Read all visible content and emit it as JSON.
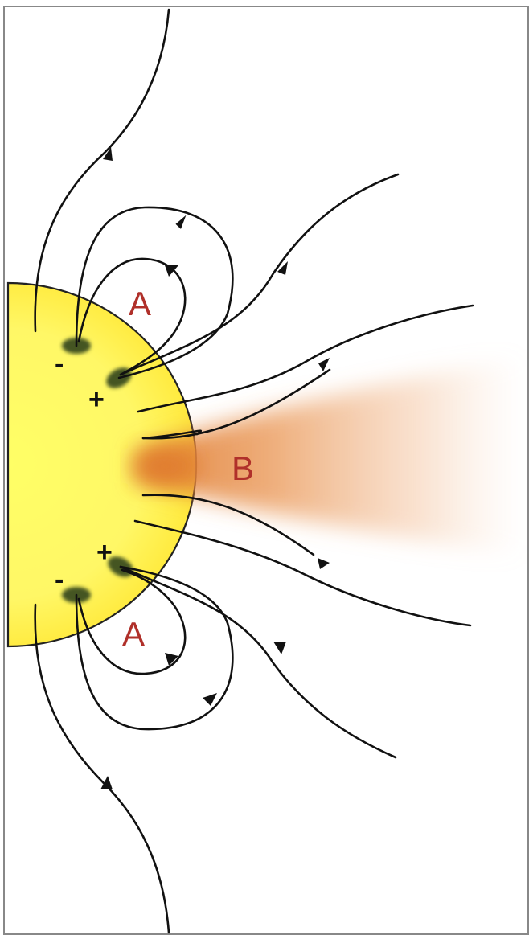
{
  "labels": {
    "region_a_upper": "A",
    "region_a_lower": "A",
    "region_b": "B",
    "pole_upper_negative": "-",
    "pole_upper_positive": "+",
    "pole_lower_positive": "+",
    "pole_lower_negative": "-"
  },
  "colors": {
    "sun": "#ffee33",
    "sun_edge": "#222222",
    "streamer": "#e07a2e",
    "field_line": "#111111",
    "region_label": "#b0302a",
    "polarity_label": "#111111",
    "sunspot": "#445522",
    "frame": "#888888"
  }
}
